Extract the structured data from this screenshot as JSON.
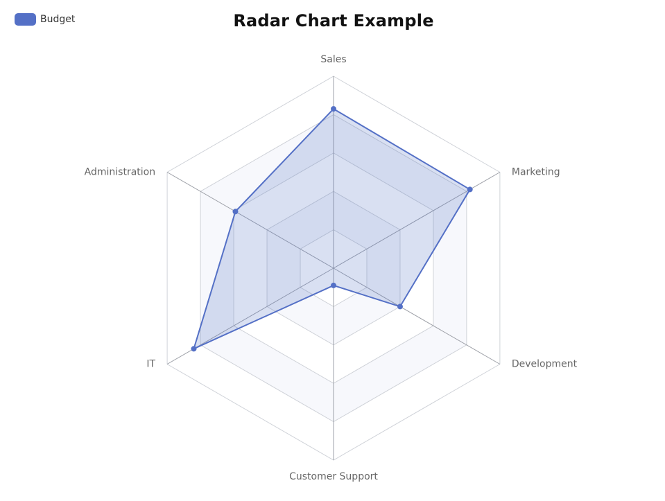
{
  "chart_data": {
    "type": "radar",
    "title": "Radar Chart Example",
    "indicators": [
      "Sales",
      "Marketing",
      "Development",
      "Customer Support",
      "IT",
      "Administration"
    ],
    "max": 100,
    "split_number": 5,
    "series": [
      {
        "name": "Budget",
        "values": [
          83,
          82,
          40,
          9,
          84,
          59
        ],
        "color": "#5470c6"
      }
    ],
    "legend_position": "top-left"
  }
}
